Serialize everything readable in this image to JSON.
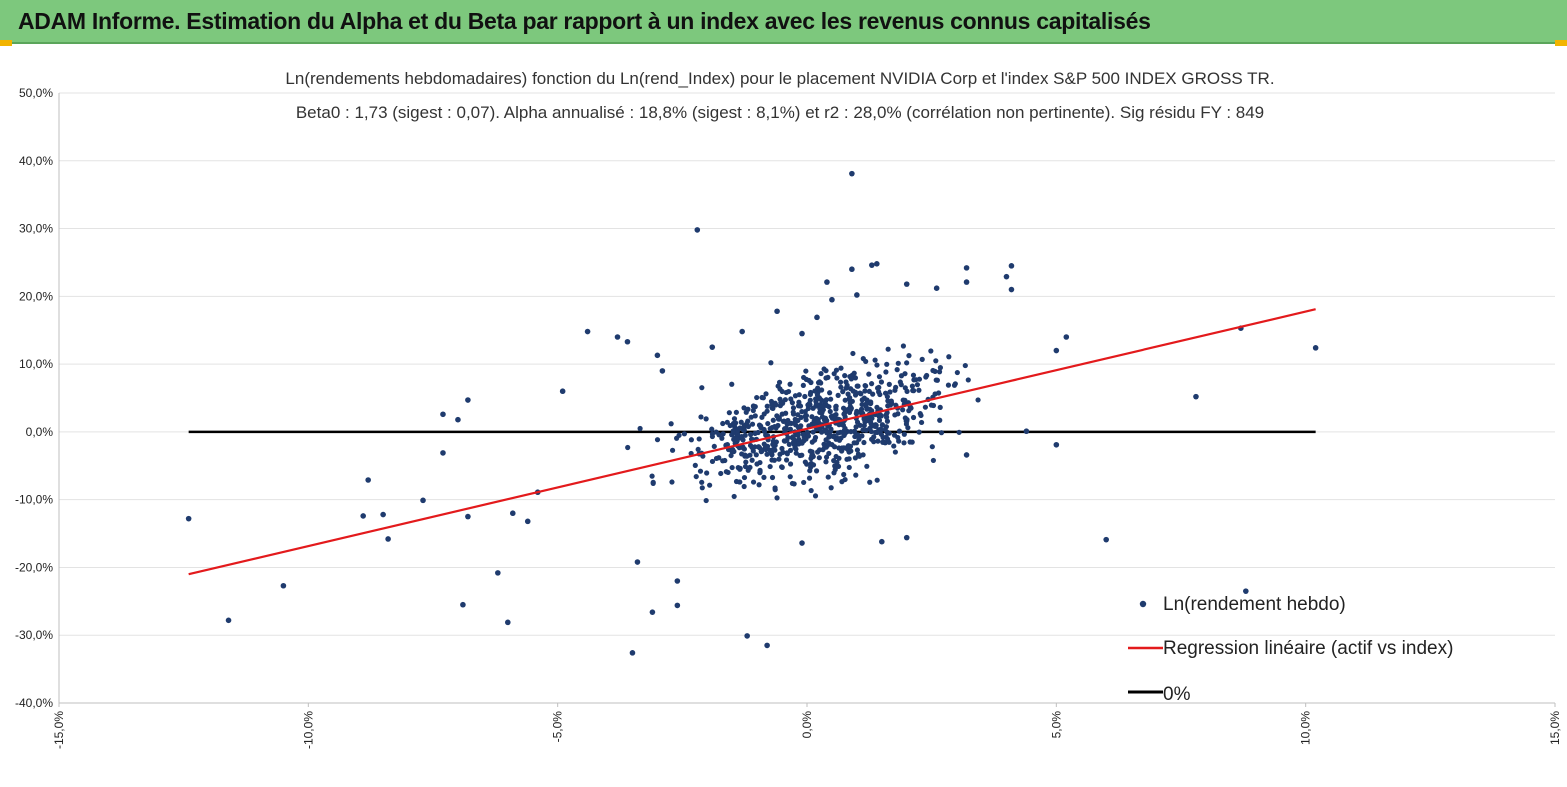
{
  "header": {
    "title": "ADAM Informe. Estimation du Alpha et du Beta par rapport à un index avec les revenus connus capitalisés"
  },
  "colors": {
    "header_bg": "#7dc87d",
    "points": "#1f3b6e",
    "regression": "#e31a1c",
    "zero_line": "#000000",
    "corner_accent": "#f2b400"
  },
  "chart_data": {
    "type": "scatter",
    "title": "Ln(rendements hebdomadaires) fonction du Ln(rend_Index) pour le placement NVIDIA Corp et l'index S&P 500 INDEX GROSS TR.",
    "subtitle": "Beta0 : 1,73 (sigest : 0,07).  Alpha annualisé : 18,8% (sigest : 8,1%) et r2 : 28,0% (corrélation non pertinente). Sig résidu FY : 849",
    "xlim": [
      -15,
      15
    ],
    "ylim": [
      -40,
      50
    ],
    "x_ticks": [
      "-15,0%",
      "-10,0%",
      "-5,0%",
      "0,0%",
      "5,0%",
      "10,0%",
      "15,0%"
    ],
    "y_ticks": [
      "50,0%",
      "40,0%",
      "30,0%",
      "20,0%",
      "10,0%",
      "0,0%",
      "-10,0%",
      "-20,0%",
      "-30,0%",
      "-40,0%"
    ],
    "grid": "horizontal",
    "legend_position": "bottom-right",
    "series": [
      {
        "name": "Ln(rendement hebdo)",
        "kind": "scatter",
        "outliers": [
          [
            -12.4,
            -12.8
          ],
          [
            -11.6,
            -27.8
          ],
          [
            -10.5,
            -22.7
          ],
          [
            -8.8,
            -7.1
          ],
          [
            -8.9,
            -12.4
          ],
          [
            -8.5,
            -12.2
          ],
          [
            -8.4,
            -15.8
          ],
          [
            -7.7,
            -10.1
          ],
          [
            -7.3,
            2.6
          ],
          [
            -7.3,
            -3.1
          ],
          [
            -7.0,
            1.8
          ],
          [
            -6.9,
            -25.5
          ],
          [
            -6.8,
            -12.5
          ],
          [
            -6.8,
            4.7
          ],
          [
            -6.2,
            -20.8
          ],
          [
            -6.0,
            -28.1
          ],
          [
            -5.9,
            -12.0
          ],
          [
            -5.6,
            -13.2
          ],
          [
            -5.4,
            -8.9
          ],
          [
            -4.9,
            6.0
          ],
          [
            -4.4,
            14.8
          ],
          [
            -3.8,
            14.0
          ],
          [
            -3.6,
            13.3
          ],
          [
            -3.4,
            -19.2
          ],
          [
            -3.1,
            -26.6
          ],
          [
            -3.0,
            11.3
          ],
          [
            -2.9,
            9.0
          ],
          [
            -3.5,
            -32.6
          ],
          [
            -2.6,
            -25.6
          ],
          [
            -2.6,
            -22.0
          ],
          [
            -2.2,
            29.8
          ],
          [
            -1.9,
            12.5
          ],
          [
            -1.3,
            14.8
          ],
          [
            -1.2,
            -30.1
          ],
          [
            -0.8,
            -31.5
          ],
          [
            -0.6,
            17.8
          ],
          [
            -0.1,
            14.5
          ],
          [
            -0.1,
            -16.4
          ],
          [
            0.2,
            16.9
          ],
          [
            0.4,
            22.1
          ],
          [
            0.5,
            19.5
          ],
          [
            0.9,
            24.0
          ],
          [
            0.9,
            38.1
          ],
          [
            1.0,
            20.2
          ],
          [
            1.3,
            24.6
          ],
          [
            1.4,
            24.8
          ],
          [
            1.5,
            -16.2
          ],
          [
            2.0,
            21.8
          ],
          [
            2.0,
            -15.6
          ],
          [
            2.6,
            21.2
          ],
          [
            3.2,
            24.2
          ],
          [
            3.2,
            22.1
          ],
          [
            4.1,
            24.5
          ],
          [
            4.0,
            22.9
          ],
          [
            4.1,
            21.0
          ],
          [
            3.2,
            -3.4
          ],
          [
            4.4,
            0.1
          ],
          [
            5.0,
            -1.9
          ],
          [
            5.0,
            12.0
          ],
          [
            5.2,
            14.0
          ],
          [
            6.0,
            -15.9
          ],
          [
            7.8,
            5.2
          ],
          [
            8.7,
            15.3
          ],
          [
            8.8,
            -23.5
          ],
          [
            10.2,
            12.4
          ]
        ],
        "cloud": {
          "n": 760,
          "seed": 849,
          "x_mean": 0.25,
          "x_sd": 1.75,
          "y_resid_sd": 5.0,
          "x_range": [
            -4.8,
            4.6
          ]
        }
      },
      {
        "name": "Regression linéaire (actif vs index)",
        "kind": "line",
        "x": [
          -12.4,
          10.2
        ],
        "y": [
          -21.0,
          18.1
        ]
      },
      {
        "name": "0%",
        "kind": "line",
        "x": [
          -12.4,
          10.2
        ],
        "y": [
          0,
          0
        ]
      }
    ]
  }
}
